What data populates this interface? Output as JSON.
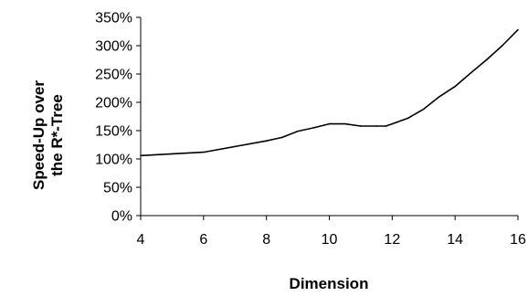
{
  "chart_data": {
    "type": "line",
    "title": "",
    "xlabel": "Dimension",
    "ylabel_line1": "Speed-Up over",
    "ylabel_line2": "the R*-Tree",
    "xlim": [
      4,
      16
    ],
    "ylim": [
      0,
      350
    ],
    "x_ticks": [
      4,
      6,
      8,
      10,
      12,
      14,
      16
    ],
    "x_tick_labels": [
      "4",
      "6",
      "8",
      "10",
      "12",
      "14",
      "16"
    ],
    "y_ticks": [
      0,
      50,
      100,
      150,
      200,
      250,
      300,
      350
    ],
    "y_tick_labels": [
      "0%",
      "50%",
      "100%",
      "150%",
      "200%",
      "250%",
      "300%",
      "350%"
    ],
    "grid": false,
    "legend": "none",
    "series": [
      {
        "x": [
          4,
          5,
          6,
          7,
          8,
          8.5,
          9,
          9.5,
          10,
          10.5,
          11,
          11.5,
          11.8,
          12,
          12.5,
          13,
          13.5,
          14,
          14.5,
          15,
          15.5,
          16
        ],
        "y": [
          106,
          109,
          112,
          122,
          132,
          138,
          149,
          155,
          162,
          162,
          158,
          158,
          158,
          162,
          172,
          188,
          210,
          228,
          252,
          275,
          300,
          328
        ],
        "color": "#000000"
      }
    ]
  }
}
